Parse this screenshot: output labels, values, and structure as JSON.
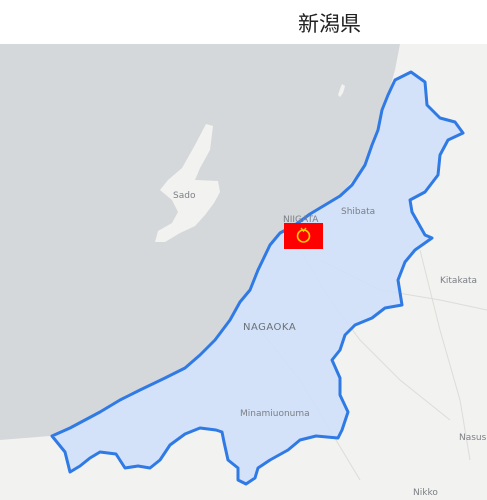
{
  "title": "新潟県",
  "map": {
    "labels": {
      "sado": "Sado",
      "niigata": "NIIGATA",
      "shibata": "Shibata",
      "kitakata": "Kitakata",
      "nagaoka": "NAGAOKA",
      "minamiuonuma": "Minamiuonuma",
      "nasu": "Nasus",
      "nikko": "Nikko"
    },
    "colors": {
      "sea": "#d5d8db",
      "land": "#f2f2f0",
      "prefecture_fill": "#cfe0f8",
      "prefecture_border": "#2f7ae5",
      "flag_red": "#ff0000",
      "flag_emblem": "#ffcc00"
    },
    "marker": {
      "type": "prefecture-flag",
      "name": "niigata-flag-icon"
    }
  }
}
